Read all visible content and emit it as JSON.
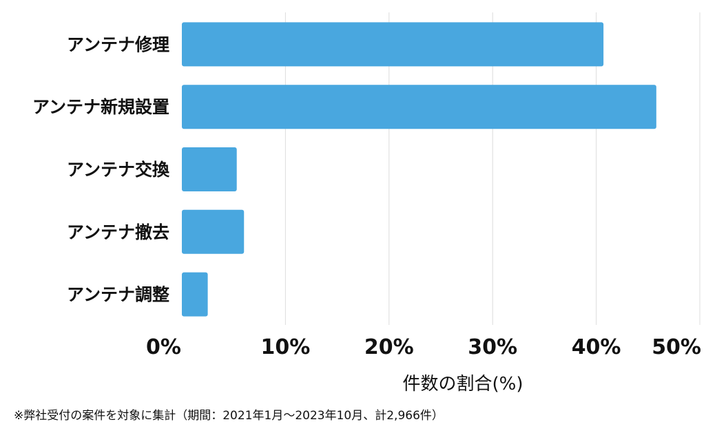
{
  "chart_data": {
    "type": "bar",
    "orientation": "horizontal",
    "categories": [
      "アンテナ修理",
      "アンテナ新規設置",
      "アンテナ交換",
      "アンテナ撤去",
      "アンテナ調整"
    ],
    "values": [
      40.7,
      45.8,
      5.3,
      6.0,
      2.5
    ],
    "xlim": [
      0,
      50
    ],
    "xticks": [
      0,
      10,
      20,
      30,
      40,
      50
    ],
    "xtick_labels": [
      "0%",
      "10%",
      "20%",
      "30%",
      "40%",
      "50%"
    ],
    "xlabel": "件数の割合(%)",
    "ylabel": "",
    "title": "",
    "grid": "vertical",
    "bar_color": "#49a7df"
  },
  "footnote": "※弊社受付の案件を対象に集計（期間：2021年1月〜2023年10月、計2,966件）"
}
